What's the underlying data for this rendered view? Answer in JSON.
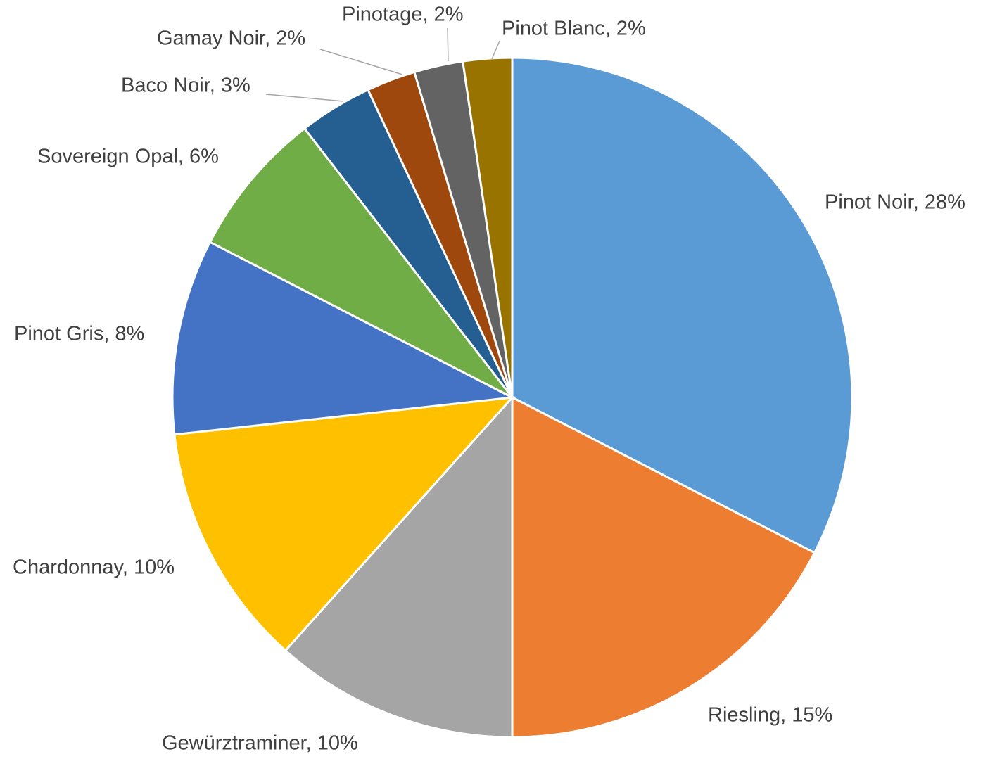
{
  "chart_data": {
    "type": "pie",
    "values": [
      28,
      15,
      10,
      10,
      8,
      6,
      3,
      2,
      2,
      2
    ],
    "value_labels": [
      "Pinot Noir, 28%",
      "Riesling, 15%",
      "Gewürztraminer, 10%",
      "Chardonnay, 10%",
      "Pinot Gris, 8%",
      "Sovereign Opal, 6%",
      "Baco Noir, 3%",
      "Gamay Noir, 2%",
      "Pinotage, 2%",
      "Pinot Blanc, 2%"
    ],
    "colors": [
      "#5b9bd5",
      "#ed7d31",
      "#a5a5a5",
      "#ffc000",
      "#4472c4",
      "#70ad47",
      "#255e91",
      "#9e480e",
      "#636363",
      "#997300"
    ]
  }
}
